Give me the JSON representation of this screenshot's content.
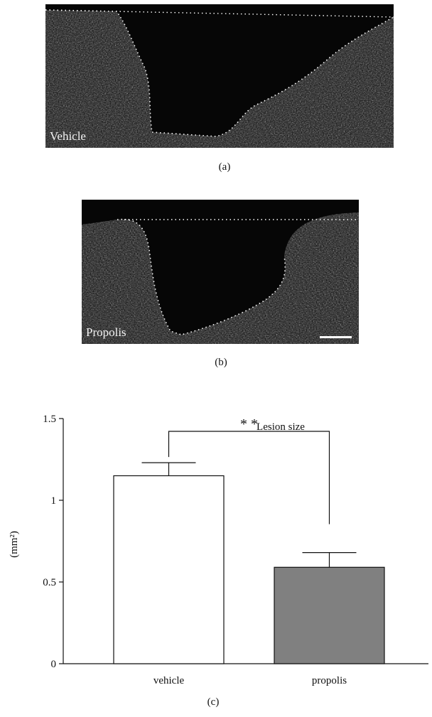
{
  "panel_a": {
    "label": "Vehicle",
    "caption": "(a)"
  },
  "panel_b": {
    "label": "Propolis",
    "caption": "(b)"
  },
  "panel_c": {
    "caption": "(c)"
  },
  "chart_data": {
    "type": "bar",
    "title": "Lesion size",
    "ylabel": "(mm²)",
    "xlabel": "",
    "categories": [
      "vehicle",
      "propolis"
    ],
    "values": [
      1.15,
      0.59
    ],
    "errors": [
      0.08,
      0.09
    ],
    "bar_colors": [
      "#ffffff",
      "#808080"
    ],
    "ylim": [
      0,
      1.5
    ],
    "yticks": [
      0,
      0.5,
      1,
      1.5
    ],
    "ytick_labels": [
      "0",
      "0.5",
      "1",
      "1.5"
    ],
    "significance": {
      "label": "* *",
      "between": [
        "vehicle",
        "propolis"
      ]
    },
    "grid": false
  }
}
